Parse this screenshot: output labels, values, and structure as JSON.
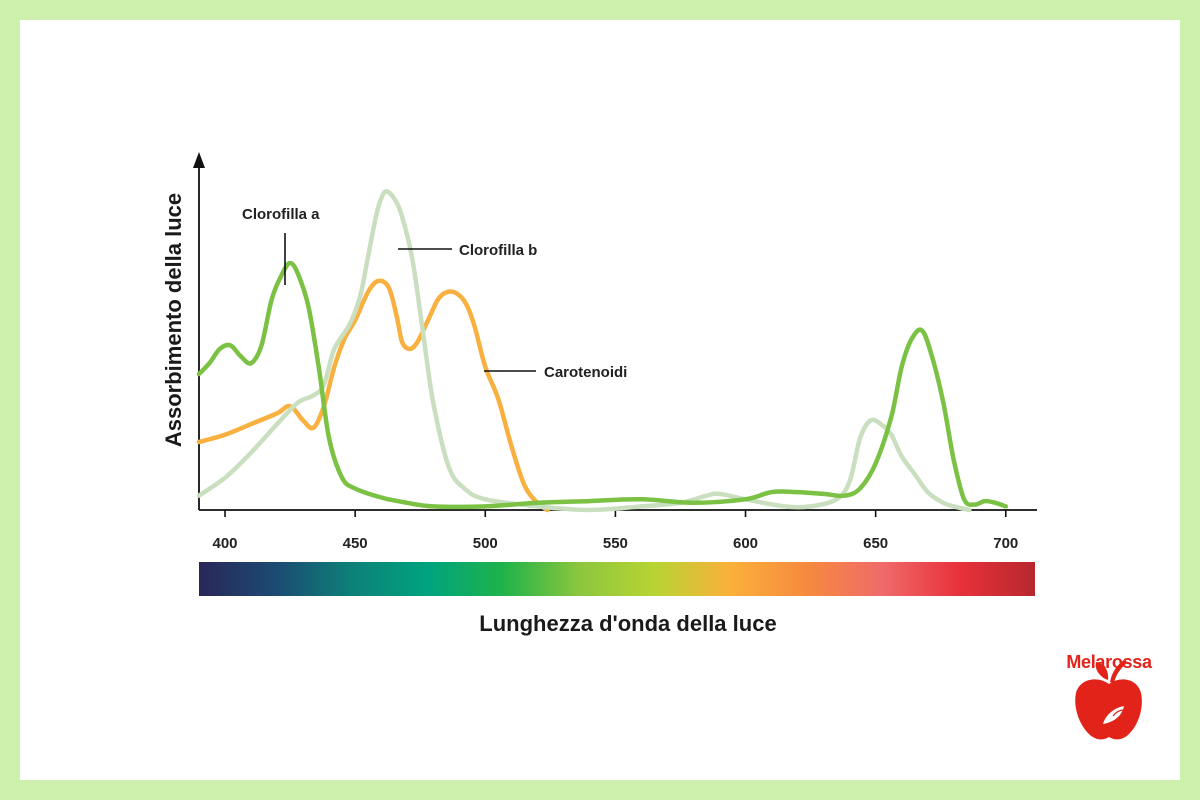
{
  "chart_data": {
    "type": "line",
    "xlabel": "Lunghezza d'onda della luce",
    "ylabel": "Assorbimento della luce",
    "xticks": [
      400,
      450,
      500,
      550,
      600,
      650,
      700
    ],
    "xlim": [
      390,
      712
    ],
    "ylim": [
      0,
      1
    ],
    "grid": false,
    "legend": "labels placed on curves",
    "series": [
      {
        "name": "Clorofilla a",
        "color": "#7bc143",
        "x": [
          390,
          394,
          398,
          402,
          406,
          410,
          414,
          418,
          422,
          425,
          428,
          432,
          436,
          440,
          445,
          450,
          460,
          470,
          480,
          500,
          520,
          540,
          560,
          580,
          600,
          610,
          620,
          630,
          638,
          644,
          650,
          656,
          660,
          664,
          668,
          672,
          676,
          680,
          684,
          688,
          692,
          696,
          700
        ],
        "values": [
          0.38,
          0.41,
          0.45,
          0.46,
          0.43,
          0.41,
          0.46,
          0.59,
          0.66,
          0.69,
          0.66,
          0.57,
          0.4,
          0.2,
          0.09,
          0.06,
          0.035,
          0.02,
          0.01,
          0.01,
          0.02,
          0.025,
          0.03,
          0.02,
          0.03,
          0.05,
          0.05,
          0.045,
          0.04,
          0.06,
          0.13,
          0.26,
          0.4,
          0.48,
          0.5,
          0.42,
          0.3,
          0.14,
          0.03,
          0.015,
          0.025,
          0.02,
          0.01
        ]
      },
      {
        "name": "Clorofilla b",
        "color": "#c9dfc0",
        "x": [
          390,
          400,
          410,
          420,
          428,
          434,
          438,
          442,
          448,
          452,
          455,
          458,
          460,
          462,
          465,
          468,
          472,
          476,
          480,
          486,
          492,
          500,
          520,
          540,
          560,
          575,
          585,
          590,
          600,
          615,
          625,
          635,
          640,
          644,
          648,
          652,
          656,
          660,
          665,
          670,
          676,
          680,
          686
        ],
        "values": [
          0.04,
          0.09,
          0.16,
          0.24,
          0.3,
          0.32,
          0.35,
          0.45,
          0.52,
          0.6,
          0.71,
          0.82,
          0.87,
          0.89,
          0.87,
          0.82,
          0.7,
          0.5,
          0.3,
          0.12,
          0.06,
          0.03,
          0.01,
          0.0,
          0.01,
          0.02,
          0.04,
          0.045,
          0.03,
          0.01,
          0.01,
          0.03,
          0.08,
          0.2,
          0.25,
          0.24,
          0.21,
          0.15,
          0.1,
          0.05,
          0.02,
          0.01,
          0.0
        ]
      },
      {
        "name": "Carotenoidi",
        "color": "#f8b040",
        "x": [
          390,
          400,
          410,
          420,
          425,
          430,
          434,
          438,
          442,
          446,
          450,
          455,
          459,
          463,
          466,
          468,
          471,
          474,
          478,
          482,
          486,
          490,
          493,
          496,
          500,
          505,
          510,
          515,
          520,
          524
        ],
        "values": [
          0.19,
          0.21,
          0.24,
          0.27,
          0.29,
          0.25,
          0.23,
          0.29,
          0.4,
          0.48,
          0.53,
          0.61,
          0.64,
          0.62,
          0.54,
          0.47,
          0.45,
          0.47,
          0.53,
          0.59,
          0.61,
          0.6,
          0.57,
          0.51,
          0.4,
          0.31,
          0.18,
          0.07,
          0.02,
          0.0
        ]
      }
    ],
    "colorbar": {
      "stops": [
        "#2a2758",
        "#1b4a72",
        "#0d8078",
        "#00a37f",
        "#1fb34a",
        "#8cc63e",
        "#b8d432",
        "#fbb03b",
        "#f58a3e",
        "#f06a6a",
        "#e8313a",
        "#b7282e"
      ]
    }
  },
  "brand": {
    "name": "Melarossa",
    "color": "#e2231a"
  }
}
